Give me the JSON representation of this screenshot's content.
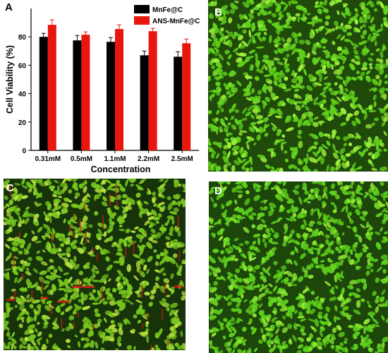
{
  "panels": {
    "a": "A",
    "b": "B",
    "c": "C",
    "d": "D"
  },
  "chart_data": {
    "type": "bar",
    "xlabel": "Concentration",
    "ylabel": "Cell Viability (%)",
    "ylim": [
      0,
      100
    ],
    "yticks": [
      0,
      20,
      40,
      60,
      80
    ],
    "categories": [
      "0.31mM",
      "0.5mM",
      "1.1mM",
      "2.2mM",
      "2.5mM"
    ],
    "series": [
      {
        "name": "MnFe@C",
        "color": "#000000",
        "values": [
          80,
          77.5,
          76.5,
          67,
          66
        ],
        "errors": [
          2.5,
          3.5,
          3,
          3,
          3.5
        ]
      },
      {
        "name": "ANS-MnFe@C",
        "color": "#e8160c",
        "values": [
          88.5,
          81.5,
          85.5,
          84,
          75.5
        ],
        "errors": [
          3.5,
          2,
          3,
          2,
          3
        ]
      }
    ],
    "legend": "top-right",
    "grid": false
  },
  "images": {
    "b": {
      "base": "#1f4a0a",
      "cell": "#62d21c",
      "highlight": "#9cf03a",
      "red_spots": false
    },
    "c": {
      "base": "#16330a",
      "cell": "#78c81e",
      "highlight": "#b4e03c",
      "red_spots": true,
      "red": "#e01818"
    },
    "d": {
      "base": "#1c460a",
      "cell": "#5ed01c",
      "highlight": "#92ea34",
      "red_spots": false
    }
  }
}
